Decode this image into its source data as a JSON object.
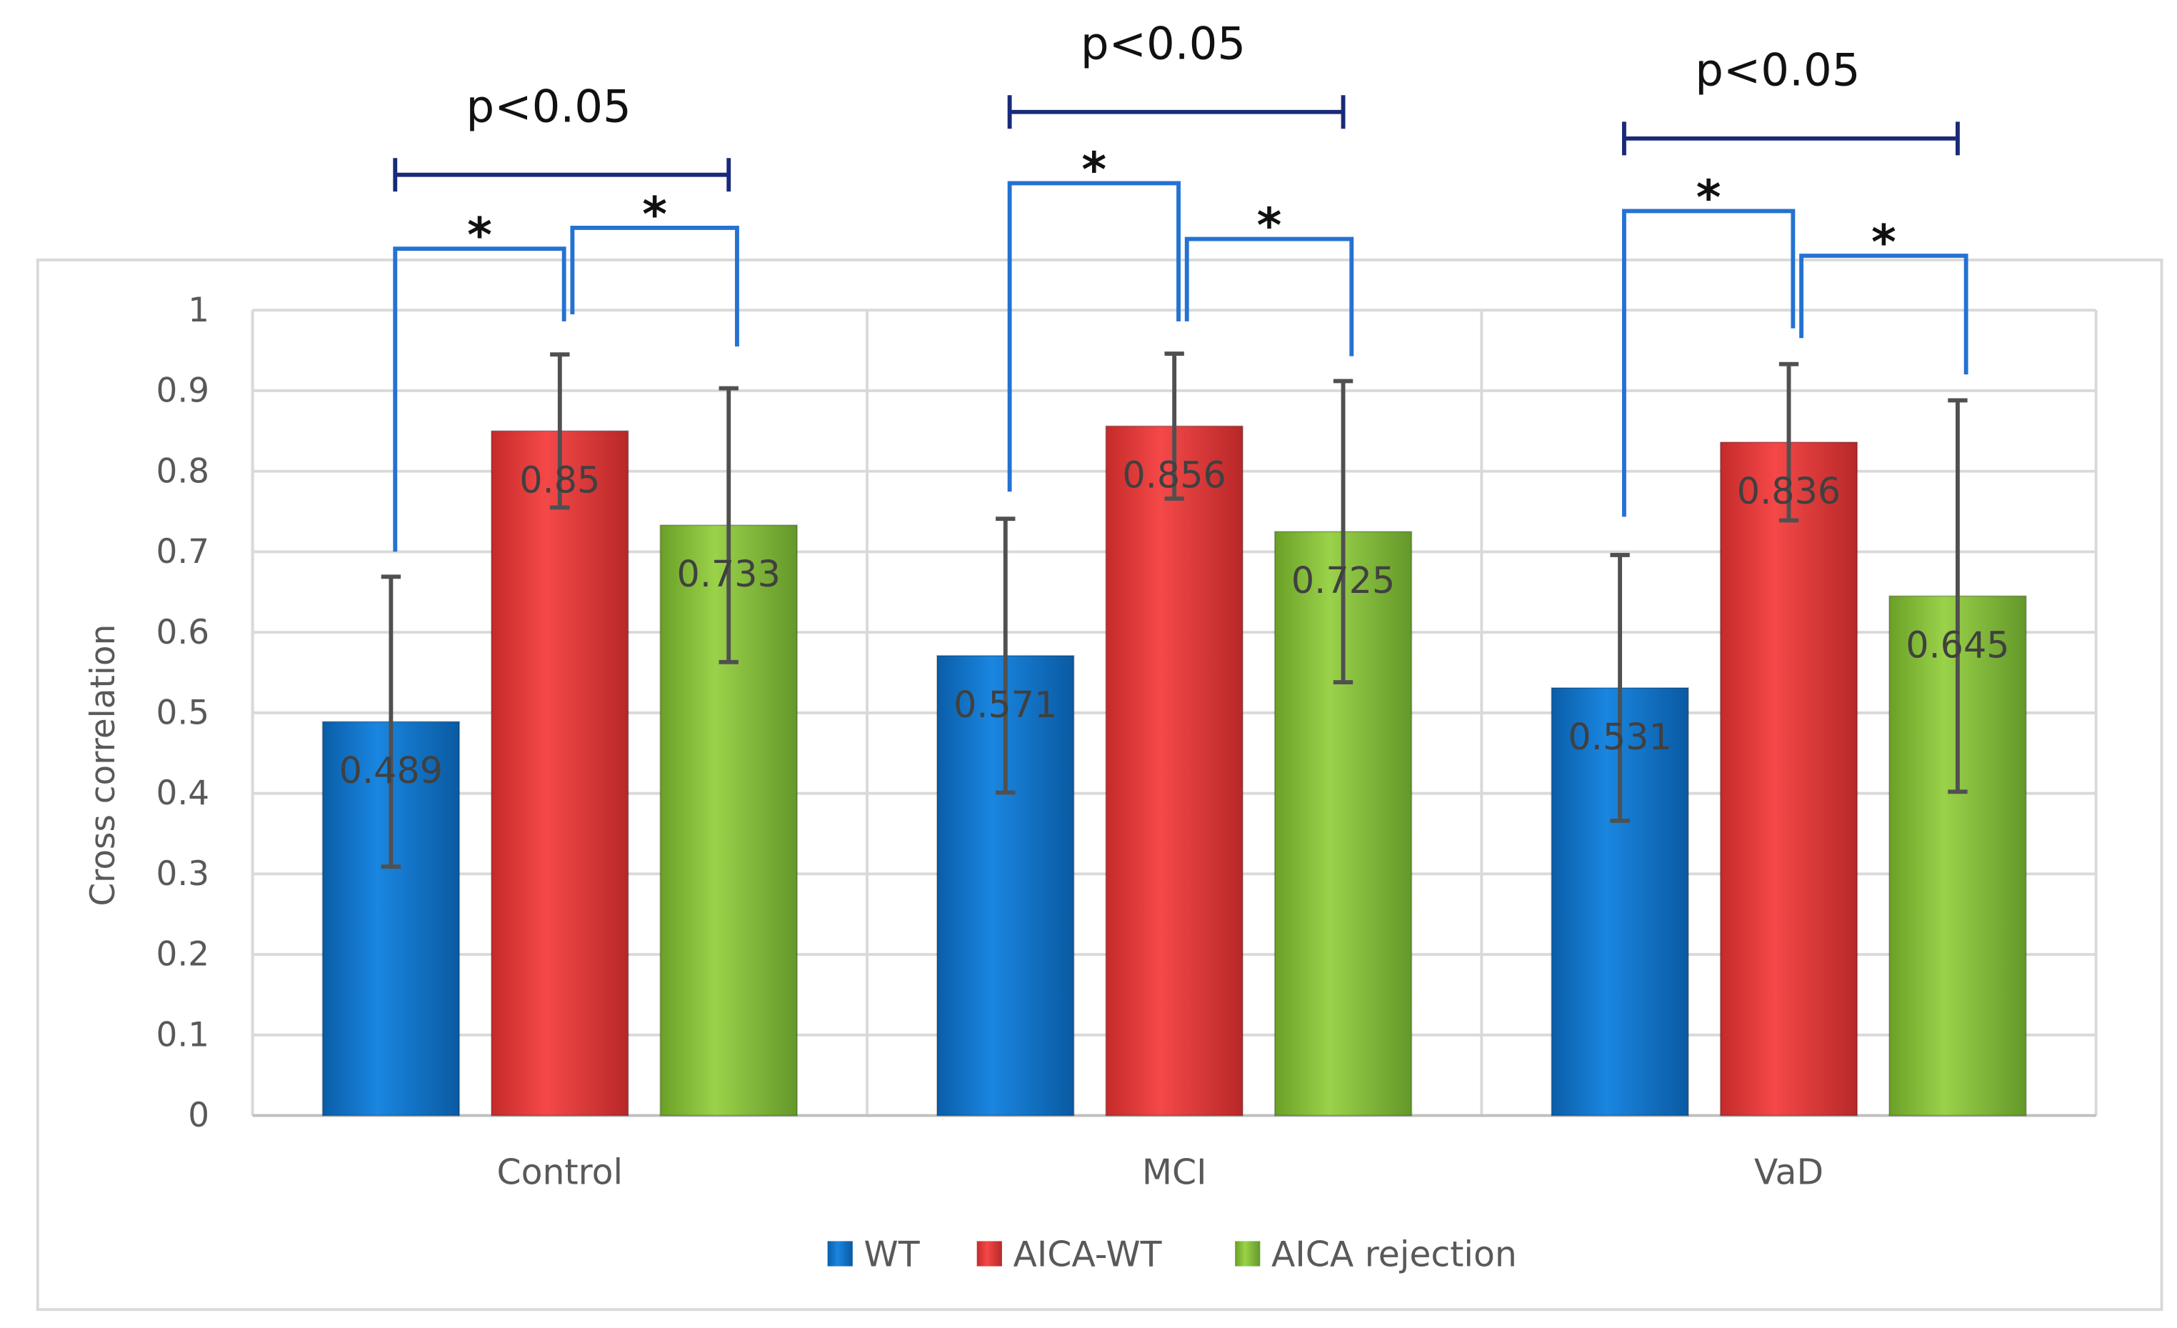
{
  "chart_data": {
    "type": "bar",
    "title": "",
    "xlabel": "",
    "ylabel": "Cross correlation",
    "ylim": [
      0,
      1
    ],
    "yticks": [
      "0",
      "0.1",
      "0.2",
      "0.3",
      "0.4",
      "0.5",
      "0.6",
      "0.7",
      "0.8",
      "0.9",
      "1"
    ],
    "grid": true,
    "legend_position": "bottom",
    "categories": [
      "Control",
      "MCI",
      "VaD"
    ],
    "series": [
      {
        "name": "WT",
        "color": "#0a72c8",
        "values": [
          0.489,
          0.571,
          0.531
        ],
        "errors": [
          0.18,
          0.17,
          0.165
        ],
        "labels": [
          "0.489",
          "0.571",
          "0.531"
        ]
      },
      {
        "name": "AICA-WT",
        "color": "#e53a3a",
        "values": [
          0.85,
          0.856,
          0.836
        ],
        "errors": [
          0.095,
          0.09,
          0.097
        ],
        "labels": [
          "0.85",
          "0.856",
          "0.836"
        ]
      },
      {
        "name": "AICA rejection",
        "color": "#86c232",
        "values": [
          0.733,
          0.725,
          0.645
        ],
        "errors": [
          0.17,
          0.187,
          0.243
        ],
        "labels": [
          "0.733",
          "0.725",
          "0.645"
        ]
      }
    ],
    "annotations": {
      "group_significance": [
        "p<0.05",
        "p<0.05",
        "p<0.05"
      ],
      "pair_marker": "*"
    }
  }
}
